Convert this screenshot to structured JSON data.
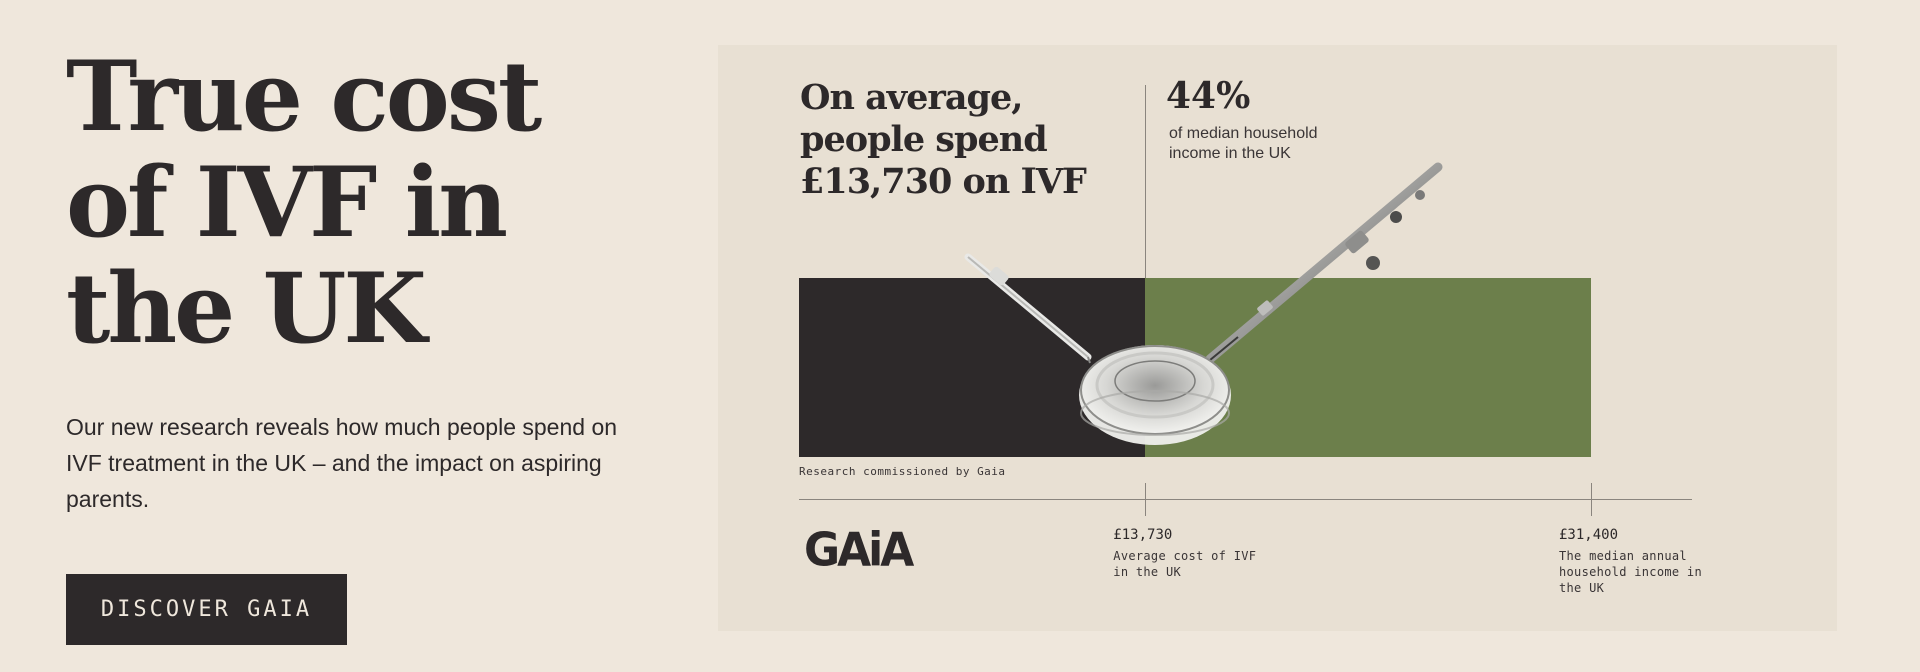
{
  "hero": {
    "title": "True cost of IVF in the UK",
    "description": "Our new research reveals how much people spend on IVF treatment in the UK – and the impact on aspiring parents.",
    "cta_label": "DISCOVER GAIA"
  },
  "infographic": {
    "headline": "On average, people spend £13,730 on IVF",
    "percent": "44%",
    "percent_label": "of median household income in the UK",
    "credit": "Research commissioned by Gaia",
    "logo_text": "GAiA",
    "colors": {
      "dark": "#2d292a",
      "green": "#6c7f4b",
      "panel": "#e8e0d3"
    },
    "illustration": "petri-dish-with-pipettes"
  },
  "chart_data": {
    "type": "bar",
    "categories": [
      "Average cost of IVF in the UK",
      "The median annual household income in the UK"
    ],
    "values": [
      13730,
      31400
    ],
    "value_labels": [
      "£13,730",
      "£31,400"
    ],
    "descriptions": [
      "Average cost of IVF in the UK",
      "The median annual household income in the UK"
    ],
    "xlabel": "",
    "ylabel": ""
  }
}
